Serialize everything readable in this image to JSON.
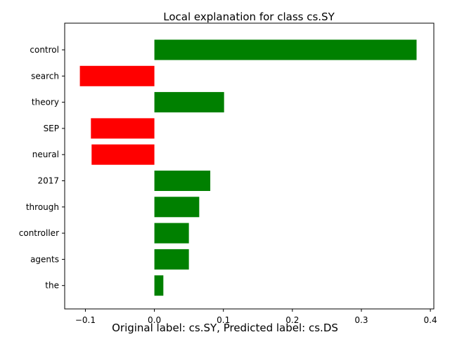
{
  "chart_data": {
    "type": "bar",
    "orientation": "horizontal",
    "title": "Local explanation for class cs.SY",
    "categories": [
      "control",
      "search",
      "theory",
      "SEP",
      "neural",
      "2017",
      "through",
      "controller",
      "agents",
      "the"
    ],
    "values": [
      0.38,
      -0.108,
      0.101,
      -0.092,
      -0.091,
      0.081,
      0.065,
      0.05,
      0.05,
      0.013
    ],
    "xlim": [
      -0.13,
      0.405
    ],
    "xticks": [
      -0.1,
      0.0,
      0.1,
      0.2,
      0.3,
      0.4
    ],
    "xtick_labels": [
      "−0.1",
      "0.0",
      "0.1",
      "0.2",
      "0.3",
      "0.4"
    ],
    "grid": false,
    "colors": {
      "positive": "#008000",
      "negative": "#ff0000"
    }
  },
  "caption": "Original label: cs.SY, Predicted label: cs.DS"
}
